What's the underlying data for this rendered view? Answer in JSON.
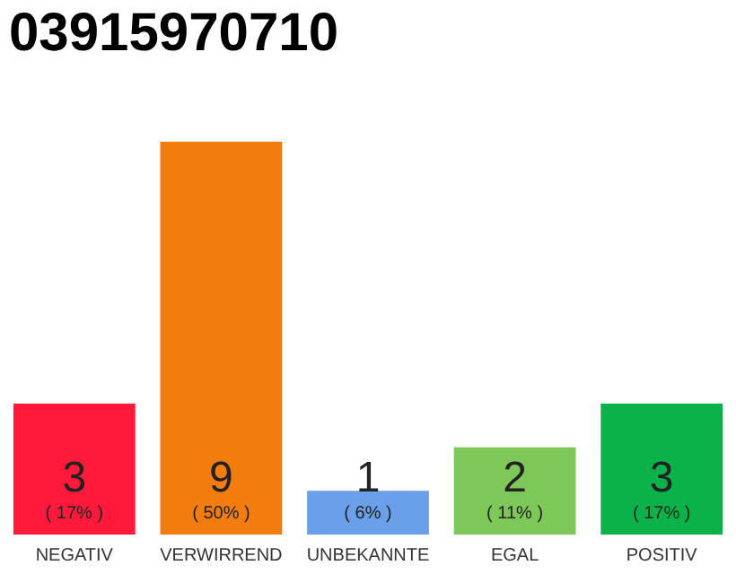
{
  "chart_data": {
    "type": "bar",
    "title": "03915970710",
    "categories": [
      "NEGATIV",
      "VERWIRREND",
      "UNBEKANNTE",
      "EGAL",
      "POSITIV"
    ],
    "values": [
      3,
      9,
      1,
      2,
      3
    ],
    "colors": [
      "#ff1a3c",
      "#f27c0e",
      "#6aa0ea",
      "#7ec85a",
      "#0bb24a"
    ],
    "data_labels": true,
    "annotations": [
      "( 17% )",
      "( 50% )",
      "( 6% )",
      "( 11% )",
      "( 17% )"
    ],
    "grid": false,
    "legend": false
  }
}
